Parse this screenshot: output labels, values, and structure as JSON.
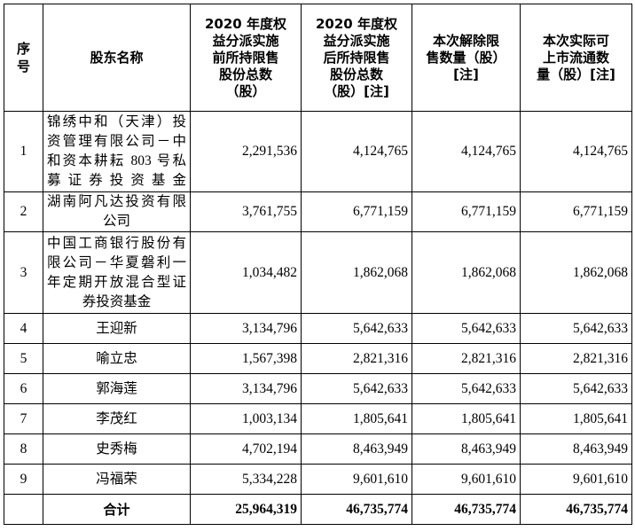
{
  "headers": {
    "no": "序号",
    "name": "股东名称",
    "pre": [
      "2020 年度权",
      "益分派实施",
      "前所持限售",
      "股份总数",
      "（股）"
    ],
    "post": [
      "2020 年度权",
      "益分派实施",
      "后所持限售",
      "股份总数",
      "（股）[注]"
    ],
    "released": [
      "本次解除限",
      "售数量（股）",
      "[注]"
    ],
    "actual": [
      "本次实际可",
      "上市流通数",
      "量（股）[注]"
    ]
  },
  "rows": [
    {
      "no": "1",
      "name": [
        "锦绣中和（天津）投",
        "资管理有限公司－中",
        "和资本耕耘 803 号私",
        "募证券投资基金"
      ],
      "pre": "2,291,536",
      "post": "4,124,765",
      "released": "4,124,765",
      "actual": "4,124,765"
    },
    {
      "no": "2",
      "name": [
        "湖南阿凡达投资有限",
        "公司"
      ],
      "pre": "3,761,755",
      "post": "6,771,159",
      "released": "6,771,159",
      "actual": "6,771,159"
    },
    {
      "no": "3",
      "name": [
        "中国工商银行股份有",
        "限公司－华夏磐利一",
        "年定期开放混合型证",
        "券投资基金"
      ],
      "pre": "1,034,482",
      "post": "1,862,068",
      "released": "1,862,068",
      "actual": "1,862,068"
    },
    {
      "no": "4",
      "name": [
        "王迎新"
      ],
      "pre": "3,134,796",
      "post": "5,642,633",
      "released": "5,642,633",
      "actual": "5,642,633"
    },
    {
      "no": "5",
      "name": [
        "喻立忠"
      ],
      "pre": "1,567,398",
      "post": "2,821,316",
      "released": "2,821,316",
      "actual": "2,821,316"
    },
    {
      "no": "6",
      "name": [
        "郭海莲"
      ],
      "pre": "3,134,796",
      "post": "5,642,633",
      "released": "5,642,633",
      "actual": "5,642,633"
    },
    {
      "no": "7",
      "name": [
        "李茂红"
      ],
      "pre": "1,003,134",
      "post": "1,805,641",
      "released": "1,805,641",
      "actual": "1,805,641"
    },
    {
      "no": "8",
      "name": [
        "史秀梅"
      ],
      "pre": "4,702,194",
      "post": "8,463,949",
      "released": "8,463,949",
      "actual": "8,463,949"
    },
    {
      "no": "9",
      "name": [
        "冯福荣"
      ],
      "pre": "5,334,228",
      "post": "9,601,610",
      "released": "9,601,610",
      "actual": "9,601,610"
    }
  ],
  "total": {
    "label": "合计",
    "pre": "25,964,319",
    "post": "46,735,774",
    "released": "46,735,774",
    "actual": "46,735,774"
  }
}
